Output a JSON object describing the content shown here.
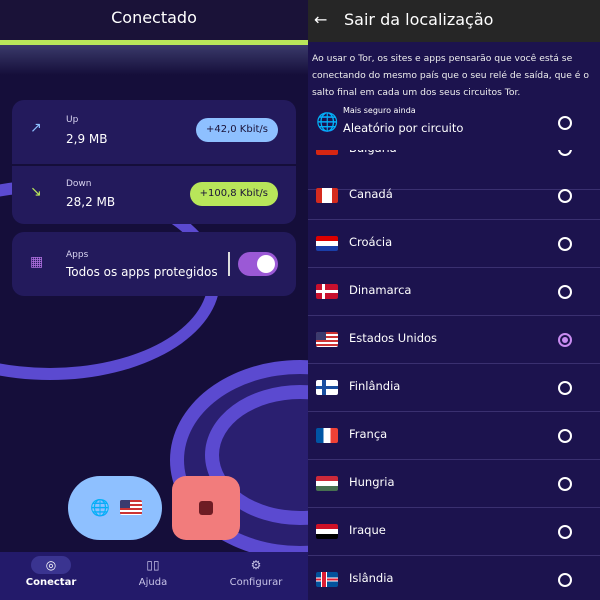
{
  "left": {
    "title": "Conectado",
    "up": {
      "label": "Up",
      "value": "2,9 MB",
      "rate": "+42,0 Kbit/s"
    },
    "down": {
      "label": "Down",
      "value": "28,2 MB",
      "rate": "+100,8 Kbit/s"
    },
    "apps": {
      "label": "Apps",
      "value": "Todos os apps protegidos",
      "toggle_on": true
    },
    "nav": [
      {
        "label": "Conectar",
        "icon": "tor-icon"
      },
      {
        "label": "Ajuda",
        "icon": "book-icon"
      },
      {
        "label": "Configurar",
        "icon": "gear-icon"
      }
    ]
  },
  "right": {
    "title": "Sair da localização",
    "description": "Ao usar o Tor, os sites e apps pensarão que você está se conectando do mesmo país que o seu relé de saída, que é o salto final em cada um dos seus circuitos Tor.",
    "random": {
      "sub": "Mais seguro ainda",
      "label": "Aleatório por circuito"
    },
    "countries": [
      {
        "name": "Bulgária"
      },
      {
        "name": "Canadá"
      },
      {
        "name": "Croácia"
      },
      {
        "name": "Dinamarca"
      },
      {
        "name": "Estados Unidos",
        "selected": true
      },
      {
        "name": "Finlândia"
      },
      {
        "name": "França"
      },
      {
        "name": "Hungria"
      },
      {
        "name": "Iraque"
      },
      {
        "name": "Islândia"
      }
    ]
  },
  "colors": {
    "accent_green": "#b8e65a",
    "up_pill": "#8ec0ff",
    "down_pill": "#b8e65a",
    "stop": "#f27c7c",
    "toggle": "#9b59d6"
  }
}
